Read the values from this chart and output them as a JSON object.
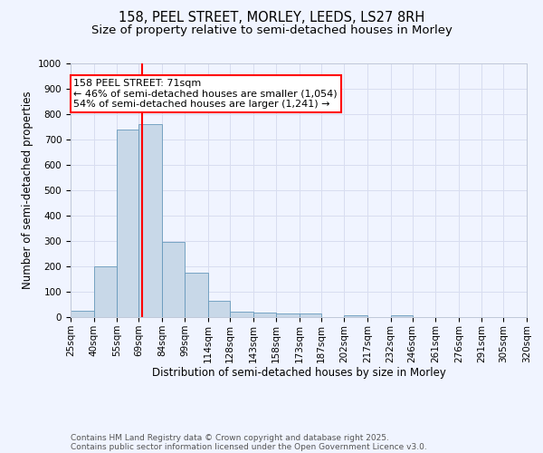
{
  "title": "158, PEEL STREET, MORLEY, LEEDS, LS27 8RH",
  "subtitle": "Size of property relative to semi-detached houses in Morley",
  "xlabel": "Distribution of semi-detached houses by size in Morley",
  "ylabel": "Number of semi-detached properties",
  "bin_labels": [
    "25sqm",
    "40sqm",
    "55sqm",
    "69sqm",
    "84sqm",
    "99sqm",
    "114sqm",
    "128sqm",
    "143sqm",
    "158sqm",
    "173sqm",
    "187sqm",
    "202sqm",
    "217sqm",
    "232sqm",
    "246sqm",
    "261sqm",
    "276sqm",
    "291sqm",
    "305sqm",
    "320sqm"
  ],
  "bin_edges": [
    25,
    40,
    55,
    69,
    84,
    99,
    114,
    128,
    143,
    158,
    173,
    187,
    202,
    217,
    232,
    246,
    261,
    276,
    291,
    305,
    320
  ],
  "bar_heights": [
    25,
    200,
    740,
    760,
    295,
    175,
    65,
    22,
    18,
    14,
    13,
    0,
    7,
    0,
    8,
    0,
    0,
    0,
    0,
    0
  ],
  "bar_color": "#c8d8e8",
  "bar_edge_color": "#6699bb",
  "grid_color": "#d8ddf0",
  "vline_x": 71,
  "vline_color": "red",
  "annotation_text": "158 PEEL STREET: 71sqm\n← 46% of semi-detached houses are smaller (1,054)\n54% of semi-detached houses are larger (1,241) →",
  "annotation_box_color": "white",
  "annotation_box_edge": "red",
  "ylim": [
    0,
    1000
  ],
  "yticks": [
    0,
    100,
    200,
    300,
    400,
    500,
    600,
    700,
    800,
    900,
    1000
  ],
  "footnote_line1": "Contains HM Land Registry data © Crown copyright and database right 2025.",
  "footnote_line2": "Contains public sector information licensed under the Open Government Licence v3.0.",
  "bg_color": "#f0f4ff",
  "title_fontsize": 10.5,
  "subtitle_fontsize": 9.5,
  "axis_label_fontsize": 8.5,
  "tick_fontsize": 7.5,
  "annotation_fontsize": 8,
  "footnote_fontsize": 6.5
}
